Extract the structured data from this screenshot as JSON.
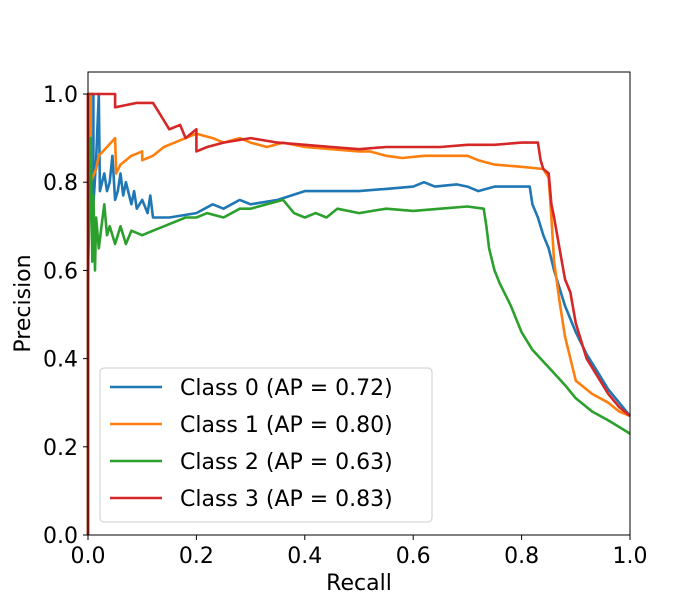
{
  "chart_data": {
    "type": "line",
    "title": "",
    "xlabel": "Recall",
    "ylabel": "Precision",
    "xlim": [
      0.0,
      1.0
    ],
    "ylim": [
      0.0,
      1.05
    ],
    "grid": false,
    "legend_position": "lower-left",
    "x_ticks": [
      0.0,
      0.2,
      0.4,
      0.6,
      0.8,
      1.0
    ],
    "x_tick_labels": [
      "0.0",
      "0.2",
      "0.4",
      "0.6",
      "0.8",
      "1.0"
    ],
    "y_ticks": [
      0.0,
      0.2,
      0.4,
      0.6,
      0.8,
      1.0
    ],
    "y_tick_labels": [
      "0.0",
      "0.2",
      "0.4",
      "0.6",
      "0.8",
      "1.0"
    ],
    "series": [
      {
        "name": "Class 0 (AP = 0.72)",
        "color": "#1f77b4",
        "points": [
          [
            0.0,
            0.0
          ],
          [
            0.0,
            1.0
          ],
          [
            0.01,
            1.0
          ],
          [
            0.01,
            0.75
          ],
          [
            0.015,
            0.85
          ],
          [
            0.02,
            1.0
          ],
          [
            0.022,
            0.78
          ],
          [
            0.03,
            0.82
          ],
          [
            0.035,
            0.78
          ],
          [
            0.04,
            0.8
          ],
          [
            0.045,
            0.86
          ],
          [
            0.05,
            0.76
          ],
          [
            0.055,
            0.78
          ],
          [
            0.06,
            0.82
          ],
          [
            0.065,
            0.77
          ],
          [
            0.07,
            0.8
          ],
          [
            0.08,
            0.75
          ],
          [
            0.085,
            0.78
          ],
          [
            0.09,
            0.74
          ],
          [
            0.1,
            0.76
          ],
          [
            0.11,
            0.73
          ],
          [
            0.115,
            0.77
          ],
          [
            0.12,
            0.72
          ],
          [
            0.15,
            0.72
          ],
          [
            0.2,
            0.73
          ],
          [
            0.23,
            0.75
          ],
          [
            0.25,
            0.74
          ],
          [
            0.28,
            0.76
          ],
          [
            0.3,
            0.75
          ],
          [
            0.35,
            0.76
          ],
          [
            0.4,
            0.78
          ],
          [
            0.45,
            0.78
          ],
          [
            0.5,
            0.78
          ],
          [
            0.55,
            0.785
          ],
          [
            0.6,
            0.79
          ],
          [
            0.62,
            0.8
          ],
          [
            0.64,
            0.79
          ],
          [
            0.68,
            0.795
          ],
          [
            0.7,
            0.79
          ],
          [
            0.72,
            0.78
          ],
          [
            0.75,
            0.79
          ],
          [
            0.8,
            0.79
          ],
          [
            0.815,
            0.79
          ],
          [
            0.82,
            0.75
          ],
          [
            0.83,
            0.72
          ],
          [
            0.84,
            0.68
          ],
          [
            0.85,
            0.65
          ],
          [
            0.86,
            0.6
          ],
          [
            0.87,
            0.56
          ],
          [
            0.88,
            0.52
          ],
          [
            0.9,
            0.46
          ],
          [
            0.92,
            0.41
          ],
          [
            0.94,
            0.37
          ],
          [
            0.96,
            0.33
          ],
          [
            0.98,
            0.3
          ],
          [
            1.0,
            0.27
          ]
        ]
      },
      {
        "name": "Class 1 (AP = 0.80)",
        "color": "#ff7f0e",
        "points": [
          [
            0.0,
            0.0
          ],
          [
            0.0,
            1.0
          ],
          [
            0.005,
            1.0
          ],
          [
            0.005,
            0.8
          ],
          [
            0.015,
            0.83
          ],
          [
            0.02,
            0.86
          ],
          [
            0.035,
            0.88
          ],
          [
            0.05,
            0.9
          ],
          [
            0.052,
            0.82
          ],
          [
            0.06,
            0.84
          ],
          [
            0.08,
            0.86
          ],
          [
            0.1,
            0.87
          ],
          [
            0.1,
            0.85
          ],
          [
            0.12,
            0.86
          ],
          [
            0.14,
            0.88
          ],
          [
            0.16,
            0.89
          ],
          [
            0.18,
            0.9
          ],
          [
            0.2,
            0.91
          ],
          [
            0.23,
            0.9
          ],
          [
            0.25,
            0.89
          ],
          [
            0.28,
            0.9
          ],
          [
            0.3,
            0.89
          ],
          [
            0.33,
            0.88
          ],
          [
            0.36,
            0.89
          ],
          [
            0.4,
            0.88
          ],
          [
            0.45,
            0.875
          ],
          [
            0.5,
            0.87
          ],
          [
            0.52,
            0.87
          ],
          [
            0.55,
            0.86
          ],
          [
            0.58,
            0.855
          ],
          [
            0.62,
            0.86
          ],
          [
            0.65,
            0.86
          ],
          [
            0.7,
            0.86
          ],
          [
            0.72,
            0.85
          ],
          [
            0.75,
            0.84
          ],
          [
            0.8,
            0.835
          ],
          [
            0.84,
            0.83
          ],
          [
            0.85,
            0.81
          ],
          [
            0.855,
            0.72
          ],
          [
            0.86,
            0.62
          ],
          [
            0.87,
            0.53
          ],
          [
            0.88,
            0.45
          ],
          [
            0.9,
            0.35
          ],
          [
            0.93,
            0.32
          ],
          [
            0.96,
            0.3
          ],
          [
            0.98,
            0.28
          ],
          [
            1.0,
            0.27
          ]
        ]
      },
      {
        "name": "Class 2 (AP = 0.63)",
        "color": "#2ca02c",
        "points": [
          [
            0.0,
            0.0
          ],
          [
            0.0,
            0.58
          ],
          [
            0.005,
            0.9
          ],
          [
            0.008,
            0.62
          ],
          [
            0.01,
            0.77
          ],
          [
            0.013,
            0.6
          ],
          [
            0.015,
            0.72
          ],
          [
            0.02,
            0.65
          ],
          [
            0.025,
            0.7
          ],
          [
            0.03,
            0.75
          ],
          [
            0.035,
            0.68
          ],
          [
            0.04,
            0.7
          ],
          [
            0.05,
            0.66
          ],
          [
            0.06,
            0.7
          ],
          [
            0.07,
            0.66
          ],
          [
            0.08,
            0.69
          ],
          [
            0.1,
            0.68
          ],
          [
            0.12,
            0.69
          ],
          [
            0.14,
            0.7
          ],
          [
            0.16,
            0.71
          ],
          [
            0.18,
            0.72
          ],
          [
            0.2,
            0.72
          ],
          [
            0.22,
            0.73
          ],
          [
            0.25,
            0.72
          ],
          [
            0.28,
            0.74
          ],
          [
            0.3,
            0.74
          ],
          [
            0.33,
            0.75
          ],
          [
            0.36,
            0.76
          ],
          [
            0.38,
            0.73
          ],
          [
            0.4,
            0.72
          ],
          [
            0.42,
            0.73
          ],
          [
            0.44,
            0.72
          ],
          [
            0.46,
            0.74
          ],
          [
            0.5,
            0.73
          ],
          [
            0.55,
            0.74
          ],
          [
            0.6,
            0.735
          ],
          [
            0.65,
            0.74
          ],
          [
            0.7,
            0.745
          ],
          [
            0.73,
            0.74
          ],
          [
            0.735,
            0.7
          ],
          [
            0.74,
            0.65
          ],
          [
            0.75,
            0.6
          ],
          [
            0.76,
            0.57
          ],
          [
            0.78,
            0.52
          ],
          [
            0.8,
            0.46
          ],
          [
            0.82,
            0.42
          ],
          [
            0.85,
            0.38
          ],
          [
            0.88,
            0.34
          ],
          [
            0.9,
            0.31
          ],
          [
            0.93,
            0.28
          ],
          [
            0.96,
            0.26
          ],
          [
            0.98,
            0.245
          ],
          [
            1.0,
            0.23
          ]
        ]
      },
      {
        "name": "Class 3 (AP = 0.83)",
        "color": "#d62728",
        "points": [
          [
            0.0,
            0.0
          ],
          [
            0.0,
            1.0
          ],
          [
            0.05,
            1.0
          ],
          [
            0.05,
            0.97
          ],
          [
            0.07,
            0.975
          ],
          [
            0.09,
            0.98
          ],
          [
            0.12,
            0.98
          ],
          [
            0.13,
            0.96
          ],
          [
            0.14,
            0.94
          ],
          [
            0.15,
            0.92
          ],
          [
            0.17,
            0.93
          ],
          [
            0.18,
            0.9
          ],
          [
            0.2,
            0.92
          ],
          [
            0.2,
            0.87
          ],
          [
            0.22,
            0.88
          ],
          [
            0.25,
            0.89
          ],
          [
            0.3,
            0.9
          ],
          [
            0.35,
            0.89
          ],
          [
            0.4,
            0.885
          ],
          [
            0.45,
            0.88
          ],
          [
            0.5,
            0.875
          ],
          [
            0.55,
            0.88
          ],
          [
            0.6,
            0.88
          ],
          [
            0.65,
            0.88
          ],
          [
            0.7,
            0.885
          ],
          [
            0.75,
            0.885
          ],
          [
            0.8,
            0.89
          ],
          [
            0.83,
            0.89
          ],
          [
            0.835,
            0.85
          ],
          [
            0.84,
            0.83
          ],
          [
            0.85,
            0.82
          ],
          [
            0.855,
            0.75
          ],
          [
            0.86,
            0.72
          ],
          [
            0.87,
            0.65
          ],
          [
            0.88,
            0.58
          ],
          [
            0.89,
            0.55
          ],
          [
            0.9,
            0.48
          ],
          [
            0.92,
            0.4
          ],
          [
            0.94,
            0.36
          ],
          [
            0.96,
            0.32
          ],
          [
            0.98,
            0.29
          ],
          [
            1.0,
            0.27
          ]
        ]
      }
    ]
  }
}
